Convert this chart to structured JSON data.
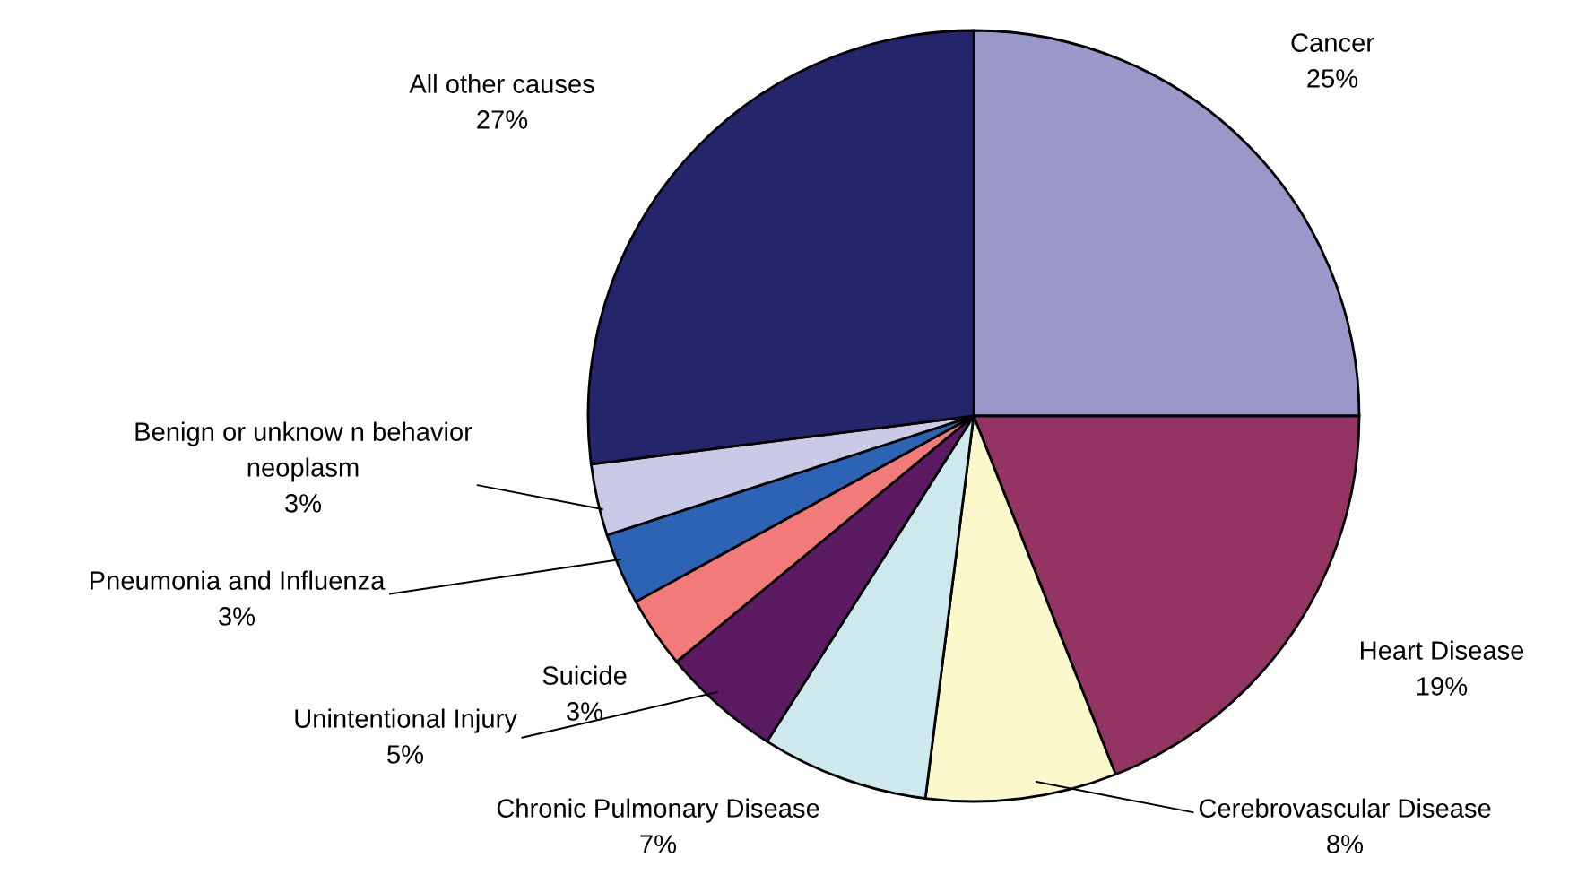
{
  "chart_data": {
    "type": "pie",
    "categories": [
      "Cancer",
      "Heart Disease",
      "Cerebrovascular Disease",
      "Chronic Pulmonary Disease",
      "Unintentional Injury",
      "Suicide",
      "Pneumonia and Influenza",
      "Benign or unknow n behavior neoplasm",
      "All other causes"
    ],
    "values": [
      25,
      19,
      8,
      7,
      5,
      3,
      3,
      3,
      27
    ],
    "colors": [
      "#9a97c9",
      "#943462",
      "#fbf8cc",
      "#cde9ee",
      "#5c1a63",
      "#f27a78",
      "#2c63b5",
      "#cbcae6",
      "#25256c"
    ],
    "value_labels": [
      "25%",
      "19%",
      "8%",
      "7%",
      "5%",
      "3%",
      "3%",
      "3%",
      "27%"
    ],
    "legend": false
  }
}
